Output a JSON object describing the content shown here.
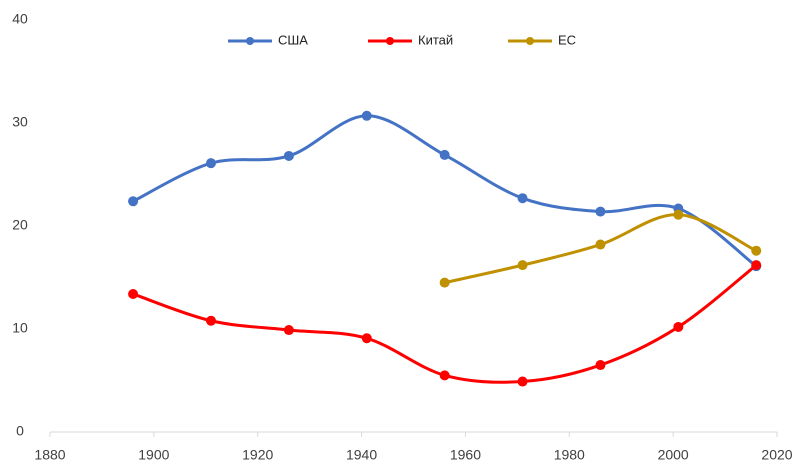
{
  "chart_data": {
    "type": "line",
    "x": [
      1896,
      1911,
      1926,
      1941,
      1956,
      1971,
      1986,
      2001,
      2016
    ],
    "series": [
      {
        "name": "США",
        "color": "#4472c4",
        "values": [
          22.4,
          26.1,
          26.8,
          30.7,
          26.9,
          22.7,
          21.4,
          21.7,
          16.1
        ]
      },
      {
        "name": "Китай",
        "color": "#ff0000",
        "values": [
          13.4,
          10.8,
          9.9,
          9.1,
          5.5,
          4.9,
          6.5,
          10.2,
          16.2
        ]
      },
      {
        "name": "ЕС",
        "color": "#bf9000",
        "values": [
          null,
          null,
          null,
          null,
          14.5,
          16.2,
          18.2,
          21.1,
          17.6
        ]
      }
    ],
    "xlim": [
      1880,
      2020
    ],
    "xticks": [
      1880,
      1900,
      1920,
      1940,
      1960,
      1980,
      2000,
      2020
    ],
    "ylim": [
      0,
      40
    ],
    "yticks": [
      0,
      10,
      20,
      30,
      40
    ],
    "legend": "top",
    "smooth": true
  }
}
